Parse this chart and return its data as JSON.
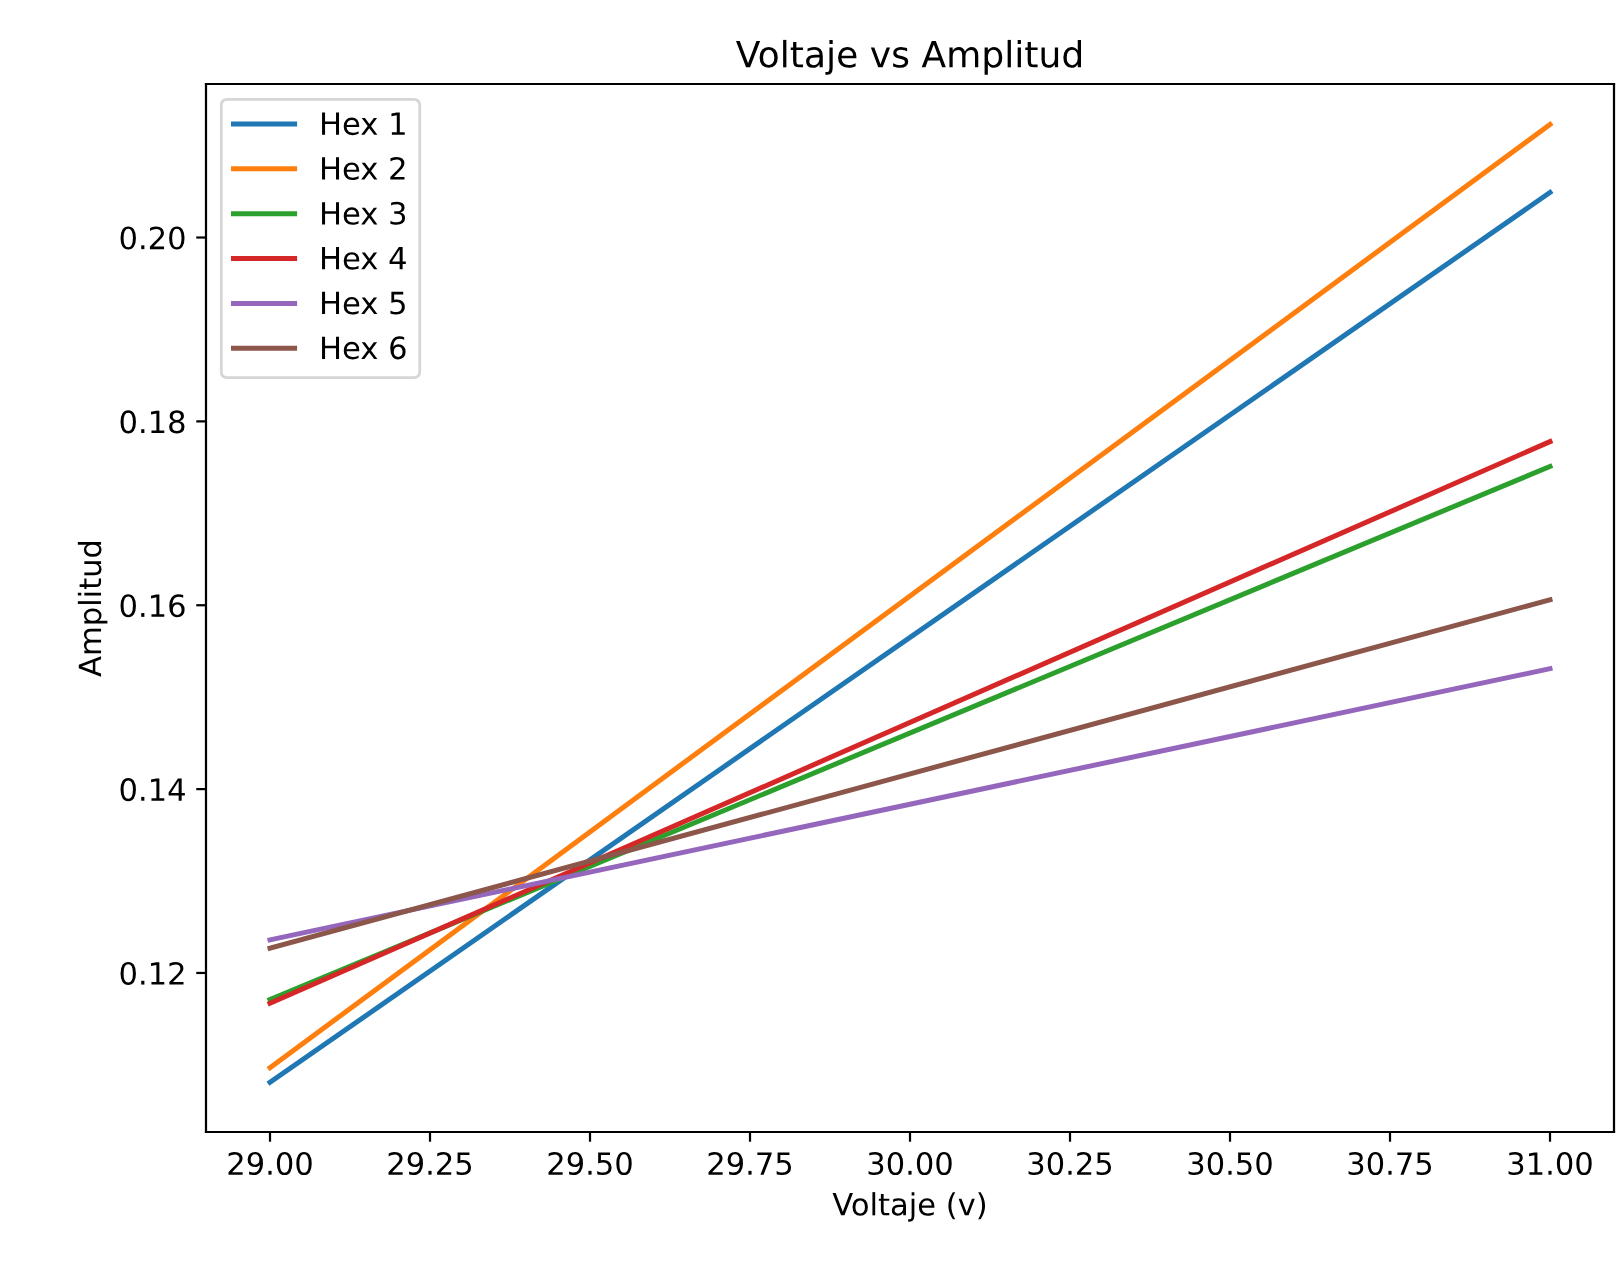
{
  "chart_data": {
    "type": "line",
    "title": "Voltaje vs Amplitud",
    "xlabel": "Voltaje (v)",
    "ylabel": "Amplitud",
    "x": [
      29,
      31
    ],
    "series": [
      {
        "name": "Hex 1",
        "color": "#1f77b4",
        "values": [
          0.1081,
          0.2049
        ]
      },
      {
        "name": "Hex 2",
        "color": "#ff7f0e",
        "values": [
          0.1097,
          0.2123
        ]
      },
      {
        "name": "Hex 3",
        "color": "#2ca02c",
        "values": [
          0.1171,
          0.1751
        ]
      },
      {
        "name": "Hex 4",
        "color": "#d62728",
        "values": [
          0.1167,
          0.1778
        ]
      },
      {
        "name": "Hex 5",
        "color": "#9467bd",
        "values": [
          0.1236,
          0.1531
        ]
      },
      {
        "name": "Hex 6",
        "color": "#8c564b",
        "values": [
          0.1227,
          0.1606
        ]
      }
    ],
    "xlim": [
      28.9,
      31.1
    ],
    "ylim": [
      0.1027,
      0.2167
    ],
    "xticks": [
      {
        "value": 29,
        "label": "29.00"
      },
      {
        "value": 29.25,
        "label": "29.25"
      },
      {
        "value": 29.5,
        "label": "29.50"
      },
      {
        "value": 29.75,
        "label": "29.75"
      },
      {
        "value": 30,
        "label": "30.00"
      },
      {
        "value": 30.25,
        "label": "30.25"
      },
      {
        "value": 30.5,
        "label": "30.50"
      },
      {
        "value": 30.75,
        "label": "30.75"
      },
      {
        "value": 31,
        "label": "31.00"
      }
    ],
    "yticks": [
      {
        "value": 0.12,
        "label": "0.12"
      },
      {
        "value": 0.14,
        "label": "0.14"
      },
      {
        "value": 0.16,
        "label": "0.16"
      },
      {
        "value": 0.18,
        "label": "0.18"
      },
      {
        "value": 0.2,
        "label": "0.20"
      }
    ],
    "legend": "top left",
    "grid": false,
    "marker": "none",
    "line_style": "solid"
  }
}
